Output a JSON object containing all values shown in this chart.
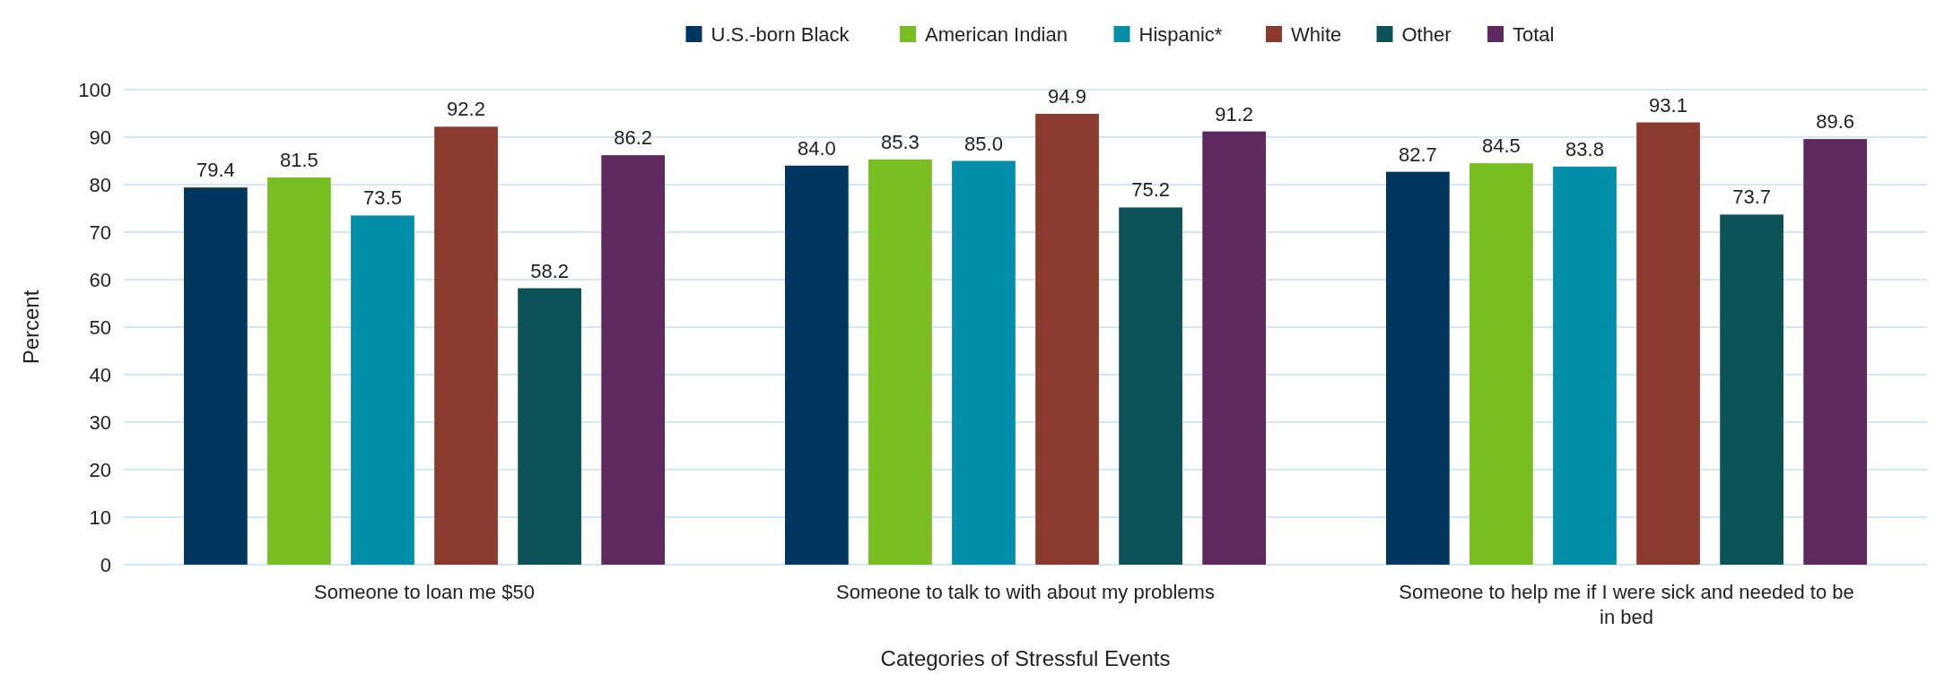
{
  "chart_data": {
    "type": "bar",
    "xlabel": "Categories of Stressful Events",
    "ylabel": "Percent",
    "categories": [
      "Someone to loan me $50",
      "Someone to talk to with about my problems",
      "Someone to help me if I were sick and needed to be in bed"
    ],
    "series": [
      {
        "name": "U.S.-born Black",
        "color": "#003660",
        "values": [
          79.4,
          84.0,
          82.7
        ],
        "value_labels": [
          "79.4",
          "84.0",
          "82.7"
        ]
      },
      {
        "name": "American Indian",
        "color": "#78be21",
        "values": [
          81.5,
          85.3,
          84.5
        ],
        "value_labels": [
          "81.5",
          "85.3",
          "84.5"
        ]
      },
      {
        "name": "Hispanic*",
        "color": "#008eaa",
        "values": [
          73.5,
          85.0,
          83.8
        ],
        "value_labels": [
          "73.5",
          "85.0",
          "83.8"
        ]
      },
      {
        "name": "White",
        "color": "#8a3b2d",
        "values": [
          92.2,
          94.9,
          93.1
        ],
        "value_labels": [
          "92.2",
          "94.9",
          "93.1"
        ]
      },
      {
        "name": "Other",
        "color": "#0d5257",
        "values": [
          58.2,
          75.2,
          73.7
        ],
        "value_labels": [
          "58.2",
          "75.2",
          "73.7"
        ]
      },
      {
        "name": "Total",
        "color": "#5d295f",
        "values": [
          86.2,
          91.2,
          89.6
        ],
        "value_labels": [
          "86.2",
          "91.2",
          "89.6"
        ]
      }
    ],
    "ylim": [
      0,
      100
    ],
    "yticks": [
      0,
      10,
      20,
      30,
      40,
      50,
      60,
      70,
      80,
      90,
      100
    ],
    "grid": "y",
    "legend": "top"
  }
}
